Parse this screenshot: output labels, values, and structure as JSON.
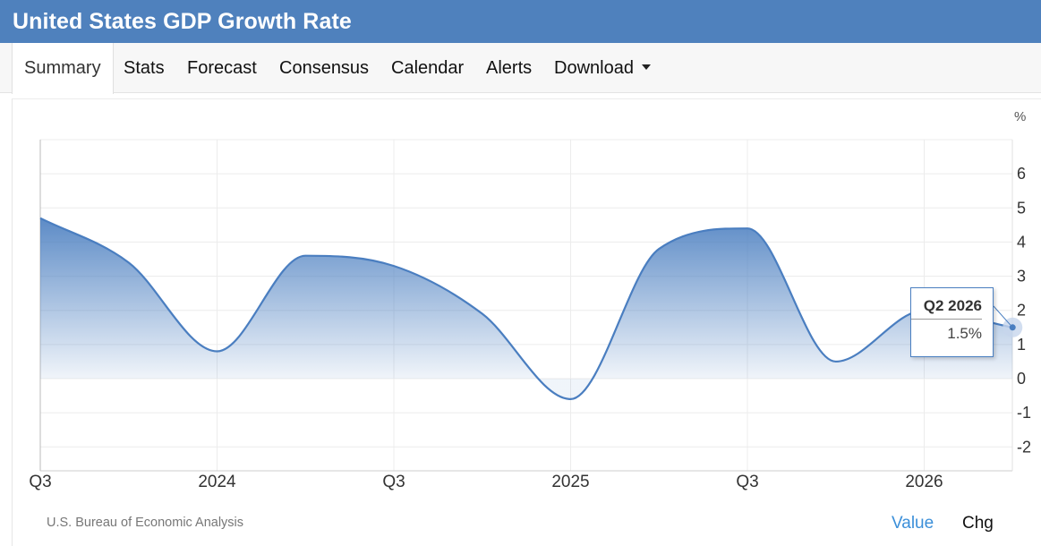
{
  "header": {
    "title": "United States GDP Growth Rate"
  },
  "tabs": [
    {
      "label": "Summary",
      "active": true
    },
    {
      "label": "Stats"
    },
    {
      "label": "Forecast"
    },
    {
      "label": "Consensus"
    },
    {
      "label": "Calendar"
    },
    {
      "label": "Alerts"
    },
    {
      "label": "Download",
      "dropdown": true
    }
  ],
  "footer": {
    "source": "U.S. Bureau of Economic Analysis",
    "toggle_value": "Value",
    "toggle_chg": "Chg"
  },
  "colors": {
    "accent": "#4f81bd",
    "line": "#4a7ec0",
    "toggle_active": "#3b8fd9"
  },
  "tooltip": {
    "label": "Q2 2026",
    "value": "1.5%"
  },
  "chart_data": {
    "type": "area",
    "unit": "%",
    "x_ticks": [
      "Q3",
      "2024",
      "Q3",
      "2025",
      "Q3",
      "2026"
    ],
    "y_ticks": [
      "-2",
      "-1",
      "0",
      "1",
      "2",
      "3",
      "4",
      "5",
      "6"
    ],
    "ylim": [
      -2.7,
      7.0
    ],
    "grid": true,
    "series": [
      {
        "x": [
          "Q3 2023",
          "Q4 2023",
          "Q1 2024",
          "Q2 2024",
          "Q3 2024",
          "Q4 2024",
          "Q1 2025",
          "Q2 2025",
          "Q3 2025",
          "Q4 2025",
          "Q1 2026",
          "Q2 2026"
        ],
        "values": [
          4.7,
          3.4,
          0.8,
          3.6,
          3.3,
          1.9,
          -0.6,
          3.8,
          4.4,
          0.5,
          2.0,
          1.5
        ]
      }
    ]
  }
}
